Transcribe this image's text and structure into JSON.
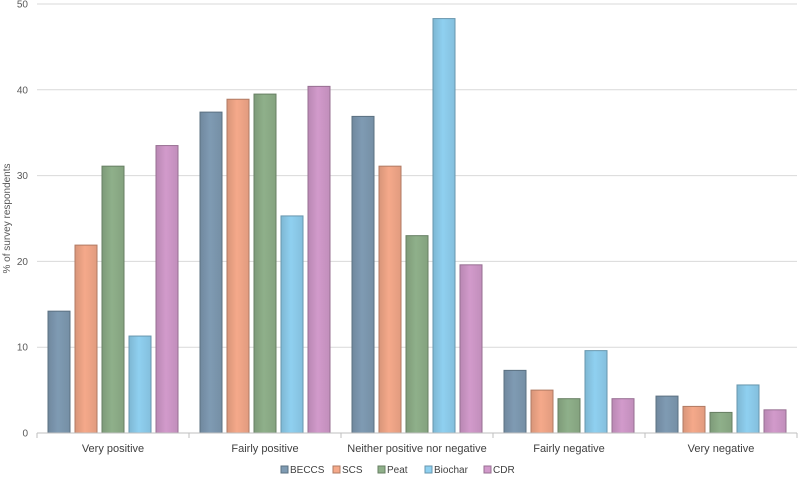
{
  "chart_data": {
    "type": "bar",
    "title": "",
    "xlabel": "",
    "ylabel": "% of survey respondents",
    "ylim": [
      0,
      50
    ],
    "yticks": [
      0,
      10,
      20,
      30,
      40,
      50
    ],
    "grid": true,
    "legend_position": "bottom",
    "categories": [
      "Very positive",
      "Fairly positive",
      "Neither positive nor negative",
      "Fairly negative",
      "Very negative"
    ],
    "series": [
      {
        "name": "BECCS",
        "values": [
          14.2,
          37.4,
          36.9,
          7.3,
          4.3
        ],
        "color": "#7f9bb3"
      },
      {
        "name": "SCS",
        "values": [
          21.9,
          38.9,
          31.1,
          5.0,
          3.1
        ],
        "color": "#f5a98a"
      },
      {
        "name": "Peat",
        "values": [
          31.1,
          39.5,
          23.0,
          4.0,
          2.4
        ],
        "color": "#8fb08a"
      },
      {
        "name": "Biochar",
        "values": [
          11.3,
          25.3,
          48.3,
          9.6,
          5.6
        ],
        "color": "#8fd0f0"
      },
      {
        "name": "CDR",
        "values": [
          33.5,
          40.4,
          19.6,
          4.0,
          2.7
        ],
        "color": "#d29acb"
      }
    ]
  }
}
